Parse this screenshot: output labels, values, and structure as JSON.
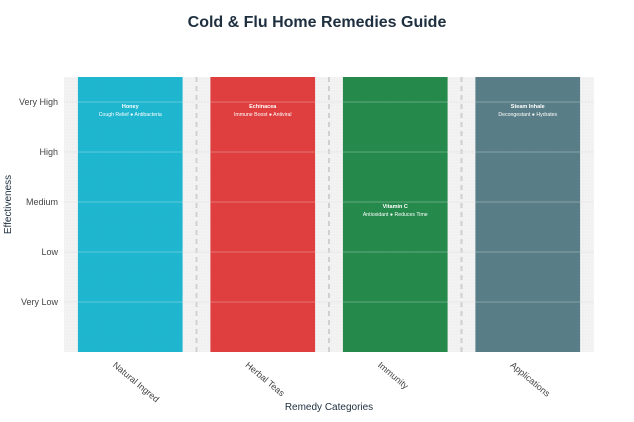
{
  "chart_data": {
    "type": "bar",
    "title": "Cold & Flu Home Remedies Guide",
    "xlabel": "Remedy Categories",
    "ylabel": "Effectiveness",
    "categories": [
      "Natural Ingred",
      "Herbal Teas",
      "Immunity",
      "Applications"
    ],
    "y_ticks": [
      "Very Low",
      "Low",
      "Medium",
      "High",
      "Very High"
    ],
    "ylim": [
      0,
      5.5
    ],
    "bar_value": 5.5,
    "bars": [
      {
        "category": "Natural Ingred",
        "color": "#1fb6cf",
        "remedy": "Honey",
        "benefits": "Cough Relief ● Antibacteria",
        "effectiveness": "Very High",
        "level": 5
      },
      {
        "category": "Herbal Teas",
        "color": "#df3f3f",
        "remedy": "Echinacea",
        "benefits": "Immune Boost ● Antiviral",
        "effectiveness": "Very High",
        "level": 5
      },
      {
        "category": "Immunity",
        "color": "#268a4c",
        "remedy": "Vitamin C",
        "benefits": "Antioxidant ● Reduces Time",
        "effectiveness": "Medium",
        "level": 3
      },
      {
        "category": "Applications",
        "color": "#5a7e87",
        "remedy": "Steam Inhale",
        "benefits": "Decongestant ● Hydrates",
        "effectiveness": "Very High",
        "level": 5
      }
    ],
    "grid": true,
    "legend": "none"
  }
}
